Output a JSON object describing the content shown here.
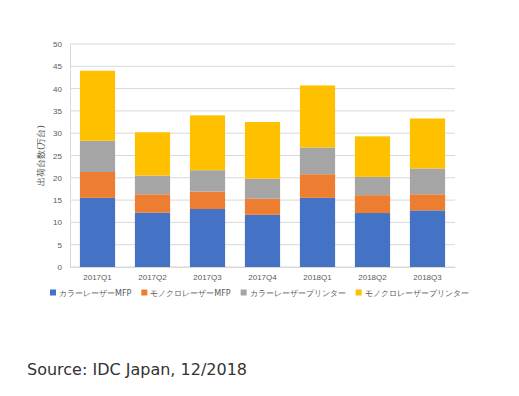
{
  "chart_data": {
    "type": "bar",
    "stacked": true,
    "grid": true,
    "legend": "bottom",
    "y_label": "出荷台数(万台)",
    "source": "Source: IDC Japan, 12/2018",
    "categories": [
      "2017Q1",
      "2017Q2",
      "2017Q3",
      "2017Q4",
      "2018Q1",
      "2018Q2",
      "2018Q3"
    ],
    "series": [
      {
        "name": "カラーレーザーMFP",
        "color": "#4472c4",
        "values": [
          15.5,
          12.2,
          13.0,
          11.7,
          15.5,
          12.1,
          12.7
        ]
      },
      {
        "name": "モノクロレーザーMFP",
        "color": "#ed7d31",
        "values": [
          5.8,
          4.1,
          3.9,
          3.6,
          5.3,
          4.0,
          3.6
        ]
      },
      {
        "name": "カラーレーザープリンター",
        "color": "#a5a5a5",
        "values": [
          7.0,
          4.2,
          4.8,
          4.5,
          6.0,
          4.1,
          5.8
        ]
      },
      {
        "name": "モノクロレーザープリンター",
        "color": "#ffc000",
        "values": [
          15.7,
          9.7,
          12.3,
          12.7,
          13.9,
          9.1,
          11.2
        ]
      }
    ],
    "ylim": [
      0,
      50
    ],
    "yticks": [
      0,
      5,
      10,
      15,
      20,
      25,
      30,
      35,
      40,
      45,
      50
    ]
  }
}
